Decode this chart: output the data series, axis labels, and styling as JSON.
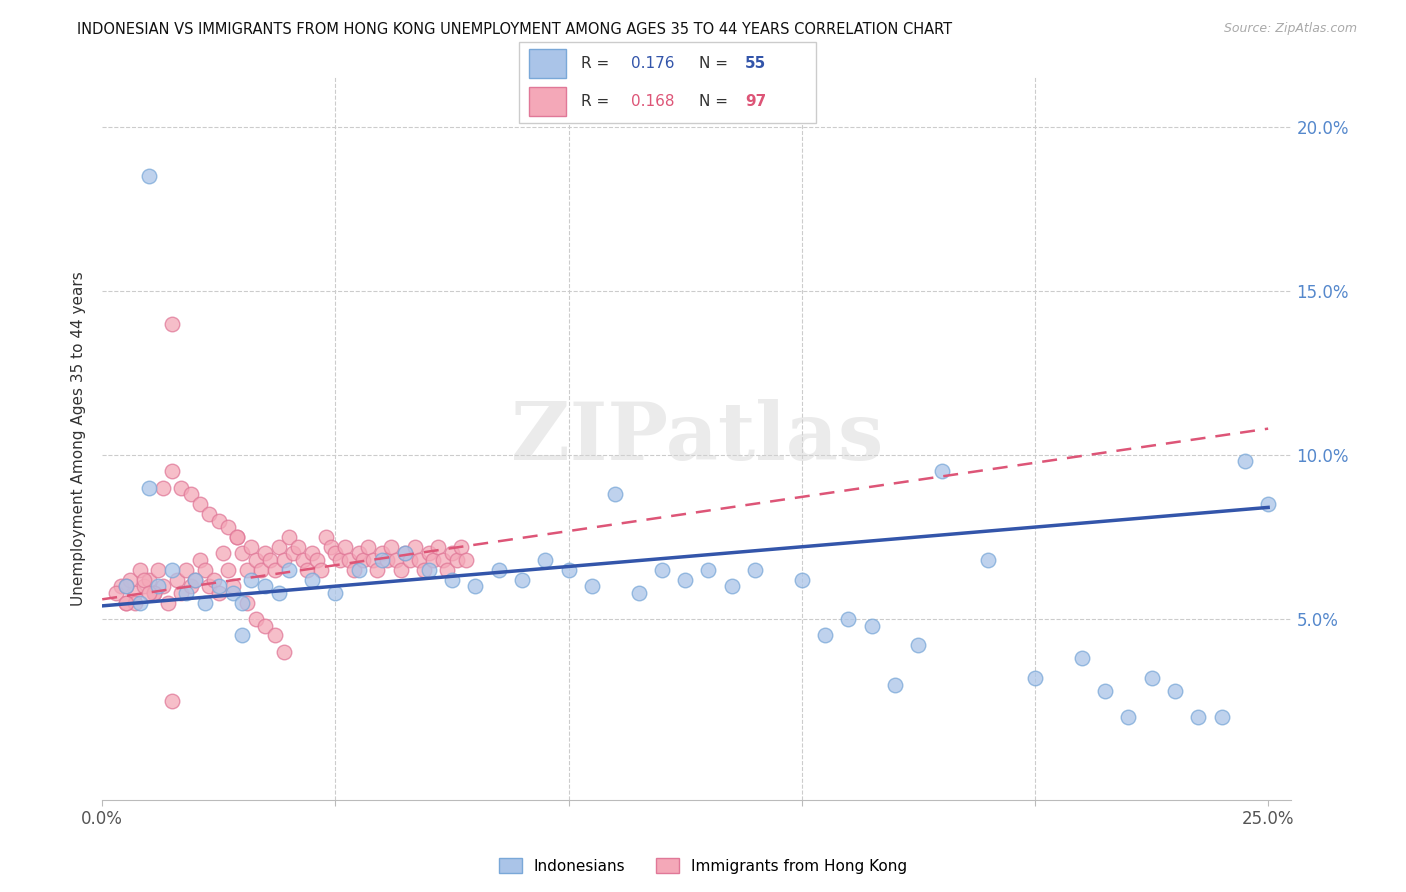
{
  "title": "INDONESIAN VS IMMIGRANTS FROM HONG KONG UNEMPLOYMENT AMONG AGES 35 TO 44 YEARS CORRELATION CHART",
  "source": "Source: ZipAtlas.com",
  "ylabel": "Unemployment Among Ages 35 to 44 years",
  "xlim": [
    0.0,
    0.255
  ],
  "ylim": [
    -0.005,
    0.215
  ],
  "xticks": [
    0.0,
    0.05,
    0.1,
    0.15,
    0.2,
    0.25
  ],
  "xticklabels": [
    "0.0%",
    "",
    "",
    "",
    "",
    "25.0%"
  ],
  "yticks": [
    0.05,
    0.1,
    0.15,
    0.2
  ],
  "right_yticklabels": [
    "5.0%",
    "10.0%",
    "15.0%",
    "20.0%"
  ],
  "blue_color": "#aac4e8",
  "blue_edge_color": "#7aa8d8",
  "pink_color": "#f4a8b8",
  "pink_edge_color": "#e07898",
  "blue_line_color": "#3355aa",
  "pink_line_color": "#dd5577",
  "R_blue": 0.176,
  "N_blue": 55,
  "R_pink": 0.168,
  "N_pink": 97,
  "legend_label_blue": "Indonesians",
  "legend_label_pink": "Immigrants from Hong Kong",
  "watermark": "ZIPatlas",
  "blue_x": [
    0.005,
    0.008,
    0.01,
    0.012,
    0.015,
    0.018,
    0.02,
    0.022,
    0.025,
    0.028,
    0.03,
    0.032,
    0.035,
    0.038,
    0.04,
    0.045,
    0.05,
    0.055,
    0.06,
    0.065,
    0.07,
    0.075,
    0.08,
    0.085,
    0.09,
    0.095,
    0.1,
    0.105,
    0.11,
    0.115,
    0.12,
    0.125,
    0.13,
    0.135,
    0.14,
    0.15,
    0.155,
    0.16,
    0.165,
    0.17,
    0.175,
    0.18,
    0.19,
    0.2,
    0.21,
    0.215,
    0.22,
    0.225,
    0.23,
    0.235,
    0.24,
    0.245,
    0.25,
    0.01,
    0.03
  ],
  "blue_y": [
    0.06,
    0.055,
    0.09,
    0.06,
    0.065,
    0.058,
    0.062,
    0.055,
    0.06,
    0.058,
    0.055,
    0.062,
    0.06,
    0.058,
    0.065,
    0.062,
    0.058,
    0.065,
    0.068,
    0.07,
    0.065,
    0.062,
    0.06,
    0.065,
    0.062,
    0.068,
    0.065,
    0.06,
    0.088,
    0.058,
    0.065,
    0.062,
    0.065,
    0.06,
    0.065,
    0.062,
    0.045,
    0.05,
    0.048,
    0.03,
    0.042,
    0.095,
    0.068,
    0.032,
    0.038,
    0.028,
    0.02,
    0.032,
    0.028,
    0.02,
    0.02,
    0.098,
    0.085,
    0.185,
    0.045
  ],
  "pink_x": [
    0.004,
    0.005,
    0.006,
    0.007,
    0.008,
    0.009,
    0.01,
    0.011,
    0.012,
    0.013,
    0.014,
    0.015,
    0.016,
    0.017,
    0.018,
    0.019,
    0.02,
    0.021,
    0.022,
    0.023,
    0.024,
    0.025,
    0.026,
    0.027,
    0.028,
    0.029,
    0.03,
    0.031,
    0.032,
    0.033,
    0.034,
    0.035,
    0.036,
    0.037,
    0.038,
    0.039,
    0.04,
    0.041,
    0.042,
    0.043,
    0.044,
    0.045,
    0.046,
    0.047,
    0.048,
    0.049,
    0.05,
    0.051,
    0.052,
    0.053,
    0.054,
    0.055,
    0.056,
    0.057,
    0.058,
    0.059,
    0.06,
    0.061,
    0.062,
    0.063,
    0.064,
    0.065,
    0.066,
    0.067,
    0.068,
    0.069,
    0.07,
    0.071,
    0.072,
    0.073,
    0.074,
    0.075,
    0.076,
    0.077,
    0.078,
    0.003,
    0.005,
    0.007,
    0.009,
    0.011,
    0.013,
    0.015,
    0.017,
    0.019,
    0.021,
    0.023,
    0.025,
    0.027,
    0.029,
    0.031,
    0.033,
    0.035,
    0.037,
    0.039,
    0.005,
    0.01,
    0.015
  ],
  "pink_y": [
    0.06,
    0.055,
    0.062,
    0.058,
    0.065,
    0.06,
    0.062,
    0.058,
    0.065,
    0.06,
    0.055,
    0.14,
    0.062,
    0.058,
    0.065,
    0.06,
    0.062,
    0.068,
    0.065,
    0.06,
    0.062,
    0.058,
    0.07,
    0.065,
    0.06,
    0.075,
    0.07,
    0.065,
    0.072,
    0.068,
    0.065,
    0.07,
    0.068,
    0.065,
    0.072,
    0.068,
    0.075,
    0.07,
    0.072,
    0.068,
    0.065,
    0.07,
    0.068,
    0.065,
    0.075,
    0.072,
    0.07,
    0.068,
    0.072,
    0.068,
    0.065,
    0.07,
    0.068,
    0.072,
    0.068,
    0.065,
    0.07,
    0.068,
    0.072,
    0.068,
    0.065,
    0.07,
    0.068,
    0.072,
    0.068,
    0.065,
    0.07,
    0.068,
    0.072,
    0.068,
    0.065,
    0.07,
    0.068,
    0.072,
    0.068,
    0.058,
    0.06,
    0.055,
    0.062,
    0.058,
    0.09,
    0.095,
    0.09,
    0.088,
    0.085,
    0.082,
    0.08,
    0.078,
    0.075,
    0.055,
    0.05,
    0.048,
    0.045,
    0.04,
    0.055,
    0.058,
    0.025
  ],
  "blue_trend": [
    0.0,
    0.25,
    0.054,
    0.084
  ],
  "pink_trend": [
    0.0,
    0.25,
    0.056,
    0.108
  ]
}
